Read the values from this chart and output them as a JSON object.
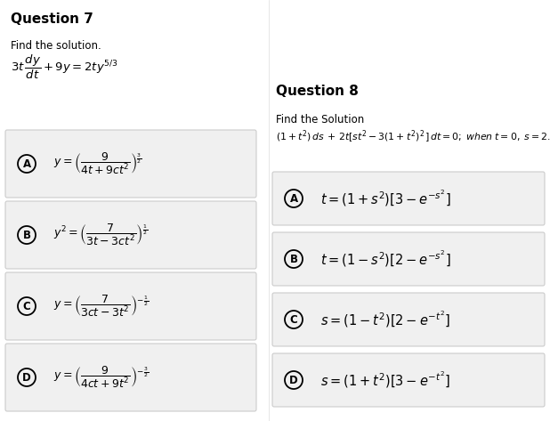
{
  "background_color": "#ffffff",
  "q7_title": "Question 7",
  "q7_find": "Find the solution.",
  "q8_title": "Question 8",
  "q8_find": "Find the Solution",
  "q7_options": [
    {
      "label": "A",
      "expr": "$y = \\left(\\dfrac{9}{4t+9ct^2}\\right)^{\\frac{3}{2}}$"
    },
    {
      "label": "B",
      "expr": "$y^2 = \\left(\\dfrac{7}{3t-3ct^2}\\right)^{\\frac{1}{2}}$"
    },
    {
      "label": "C",
      "expr": "$y = \\left(\\dfrac{7}{3ct-3t^2}\\right)^{-\\frac{1}{2}}$"
    },
    {
      "label": "D",
      "expr": "$y = \\left(\\dfrac{9}{4ct+9t^2}\\right)^{-\\frac{3}{2}}$"
    }
  ],
  "q8_options": [
    {
      "label": "A",
      "expr": "$t = (1 + s^2)[3 - e^{-s^2}]$"
    },
    {
      "label": "B",
      "expr": "$t = (1 - s^2)[2 - e^{-s^2}]$"
    },
    {
      "label": "C",
      "expr": "$s = (1 - t^2)[2 - e^{-t^2}]$"
    },
    {
      "label": "D",
      "expr": "$s = (1 + t^2)[3 - e^{-t^2}]$"
    }
  ],
  "option_box_color": "#f0f0f0",
  "option_box_edge": "#cccccc",
  "text_color": "#000000",
  "title_fontsize": 11,
  "body_fontsize": 8.5,
  "math_fontsize": 9.5,
  "opt_math_fontsize": 9.0,
  "q8_opt_fontsize": 10.5
}
